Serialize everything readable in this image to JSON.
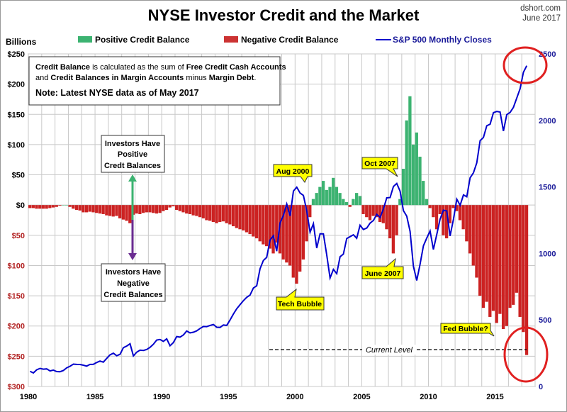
{
  "chart_data": {
    "type": "bar",
    "title": "NYSE Investor Credit and the Market",
    "source": "dshort.com",
    "date": "June 2017",
    "ylabel": "Billions",
    "ylim": [
      -300,
      250
    ],
    "y2lim": [
      0,
      2500
    ],
    "xlim": [
      1980,
      2018
    ],
    "grid": true,
    "legend_placement": "top",
    "x_ticks": [
      "1980",
      "1985",
      "1990",
      "1995",
      "2000",
      "2005",
      "2010",
      "2015"
    ],
    "y_ticks": [
      {
        "v": 250,
        "label": "$250"
      },
      {
        "v": 200,
        "label": "$200"
      },
      {
        "v": 150,
        "label": "$150"
      },
      {
        "v": 100,
        "label": "$100"
      },
      {
        "v": 50,
        "label": "$50"
      },
      {
        "v": 0,
        "label": "$0"
      },
      {
        "v": -50,
        "label": "$50"
      },
      {
        "v": -100,
        "label": "$100"
      },
      {
        "v": -150,
        "label": "$150"
      },
      {
        "v": -200,
        "label": "$200"
      },
      {
        "v": -250,
        "label": "$250"
      },
      {
        "v": -300,
        "label": "$300"
      }
    ],
    "y2_ticks": [
      "2500",
      "2000",
      "1500",
      "1000",
      "500",
      "0"
    ],
    "legend": {
      "positive": "Positive Credit Balance",
      "negative": "Negative Credit Balance",
      "sp500": "S&P 500 Monthly Closes"
    },
    "colors": {
      "positive": "#3cb371",
      "negative": "#cc2222",
      "sp500": "#0000cc",
      "negative_tick": "#b22222",
      "right_axis": "#1a1a99",
      "callout": "#ffff00",
      "circle": "#e02020"
    },
    "x_start": 1980.0,
    "x_step_years": 0.25,
    "credit_balance": [
      -5,
      -5,
      -6,
      -6,
      -6,
      -6,
      -5,
      -4,
      -3,
      -1,
      0,
      0,
      -3,
      -6,
      -8,
      -9,
      -12,
      -12,
      -11,
      -12,
      -13,
      -14,
      -15,
      -17,
      -18,
      -19,
      -18,
      -22,
      -24,
      -26,
      -30,
      -16,
      -14,
      -15,
      -13,
      -12,
      -12,
      -13,
      -14,
      -13,
      -10,
      -8,
      -4,
      -2,
      -8,
      -10,
      -12,
      -14,
      -15,
      -17,
      -18,
      -20,
      -22,
      -25,
      -26,
      -28,
      -30,
      -28,
      -27,
      -30,
      -32,
      -35,
      -38,
      -40,
      -42,
      -45,
      -48,
      -52,
      -55,
      -60,
      -65,
      -68,
      -72,
      -80,
      -62,
      -80,
      -90,
      -95,
      -100,
      -120,
      -130,
      -110,
      -90,
      -60,
      -20,
      10,
      20,
      30,
      40,
      25,
      30,
      45,
      30,
      20,
      10,
      5,
      -3,
      10,
      20,
      15,
      -15,
      -20,
      -25,
      -18,
      -20,
      -28,
      -30,
      -40,
      -55,
      -80,
      -50,
      10,
      60,
      140,
      180,
      100,
      120,
      80,
      40,
      10,
      -5,
      -20,
      -40,
      -15,
      -50,
      -55,
      -30,
      -5,
      -10,
      -25,
      -40,
      -60,
      -80,
      -100,
      -120,
      -150,
      -170,
      -160,
      -185,
      -175,
      -195,
      -180,
      -205,
      -200,
      -170,
      -165,
      -145,
      -185,
      -210,
      -248
    ],
    "sp500": [
      114,
      102,
      125,
      136,
      130,
      132,
      117,
      123,
      112,
      111,
      120,
      140,
      152,
      168,
      166,
      165,
      160,
      153,
      166,
      167,
      180,
      191,
      183,
      211,
      238,
      250,
      231,
      242,
      292,
      304,
      321,
      230,
      258,
      273,
      271,
      278,
      294,
      317,
      349,
      353,
      339,
      358,
      306,
      330,
      375,
      371,
      387,
      417,
      403,
      408,
      418,
      436,
      451,
      450,
      459,
      466,
      445,
      444,
      462,
      459,
      500,
      544,
      584,
      615,
      645,
      670,
      687,
      740,
      757,
      885,
      947,
      970,
      1101,
      1133,
      1017,
      1229,
      1286,
      1372,
      1282,
      1469,
      1498,
      1454,
      1436,
      1320,
      1160,
      1224,
      1040,
      1148,
      1147,
      989,
      815,
      880,
      848,
      975,
      995,
      1112,
      1126,
      1140,
      1114,
      1212,
      1180,
      1191,
      1228,
      1248,
      1294,
      1270,
      1335,
      1418,
      1420,
      1503,
      1526,
      1468,
      1322,
      1280,
      1166,
      903,
      797,
      919,
      1057,
      1115,
      1169,
      1030,
      1141,
      1257,
      1325,
      1320,
      1131,
      1257,
      1408,
      1362,
      1440,
      1426,
      1569,
      1606,
      1681,
      1848,
      1872,
      1960,
      1972,
      2058,
      2067,
      2063,
      1920,
      2043,
      2060,
      2098,
      2168,
      2238,
      2362,
      2411
    ],
    "note_box": {
      "line1": [
        {
          "t": "Credit Balance",
          "b": true
        },
        {
          "t": " is calculated as the sum of ",
          "b": false
        },
        {
          "t": "Free Credit Cash Accounts",
          "b": true
        }
      ],
      "line2": [
        {
          "t": "and ",
          "b": false
        },
        {
          "t": "Credit Balances in Margin Accounts",
          "b": true
        },
        {
          "t": " minus ",
          "b": false
        },
        {
          "t": "Margin Debt",
          "b": true
        },
        {
          "t": ".",
          "b": false
        }
      ],
      "note": "Note: Latest NYSE data as of May 2017"
    },
    "annotations": {
      "positive_box": [
        "Investors Have",
        "Positive",
        "Credt Balances"
      ],
      "negative_box": [
        "Investors Have",
        "Negative",
        "Credit Balances"
      ],
      "aug2000": "Aug 2000",
      "oct2007": "Oct 2007",
      "tech_bubble": "Tech Bubble",
      "june2007": "June 2007",
      "fed_bubble": "Fed Bubble?",
      "current_level": "Current Level"
    }
  }
}
